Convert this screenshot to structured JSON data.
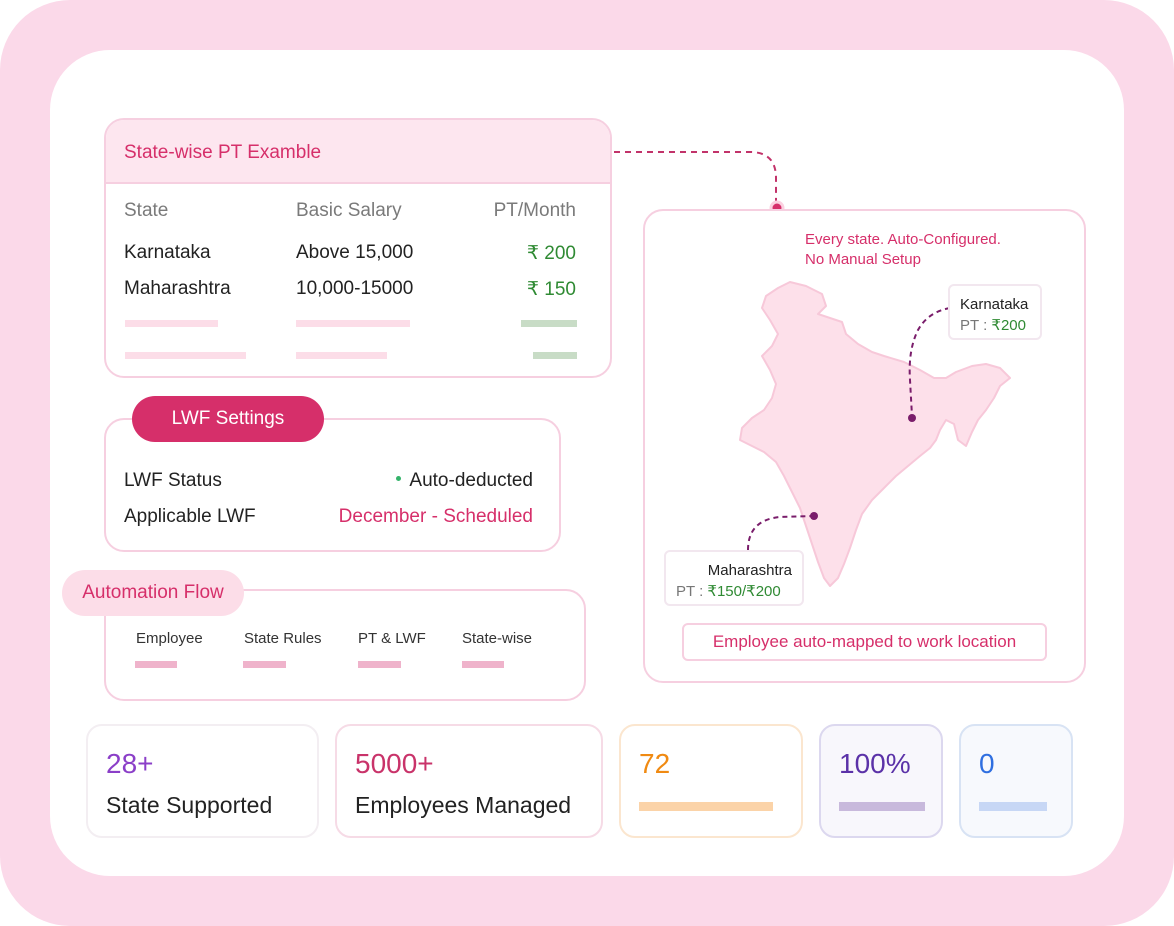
{
  "pt_table": {
    "title": "State-wise PT Examble",
    "headers": [
      "State",
      "Basic Salary",
      "PT/Month"
    ],
    "rows": [
      {
        "state": "Karnataka",
        "salary": "Above 15,000",
        "pt": "₹ 200"
      },
      {
        "state": "Maharashtra",
        "salary": "10,000-15000",
        "pt": "₹ 150"
      }
    ]
  },
  "lwf": {
    "pill": "LWF Settings",
    "status_label": "LWF Status",
    "status_value": "Auto-deducted",
    "applicable_label": "Applicable LWF",
    "applicable_value": "December - Scheduled"
  },
  "automation": {
    "pill": "Automation Flow",
    "steps": [
      "Employee",
      "State Rules",
      "PT & LWF",
      "State-wise"
    ]
  },
  "map": {
    "line1": "Every state. Auto-Configured.",
    "line2": "No Manual Setup",
    "karnataka": {
      "name": "Karnataka",
      "pt_label": "PT : ",
      "pt_value": "₹200"
    },
    "maharashtra": {
      "name": "Maharashtra",
      "pt_label": "PT : ",
      "pt_value": "₹150/₹200"
    },
    "footer": "Employee auto-mapped to work location"
  },
  "stats": [
    {
      "value": "28+",
      "label": "State Supported",
      "color": "#8b3fc8"
    },
    {
      "value": "5000+",
      "label": "Employees Managed",
      "color": "#c9336a"
    },
    {
      "value": "72",
      "label": "",
      "color": "#f08a12"
    },
    {
      "value": "100%",
      "label": "",
      "color": "#5b32a8"
    },
    {
      "value": "0",
      "label": "",
      "color": "#2f6fe0"
    }
  ],
  "colors": {
    "accent": "#d62f6a",
    "outer_bg": "#fbd9e9",
    "green": "#2f8a33"
  }
}
